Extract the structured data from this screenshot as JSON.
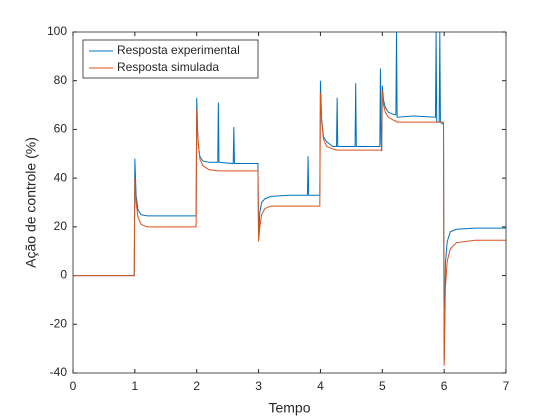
{
  "chart_data": {
    "type": "line",
    "xlabel": "Tempo",
    "ylabel": "Ação de controle (%)",
    "x": [
      0,
      0.99,
      1.0,
      1.02,
      1.05,
      1.1,
      1.2,
      1.5,
      1.8,
      1.99,
      2.0,
      2.02,
      2.05,
      2.1,
      2.2,
      2.34,
      2.35,
      2.36,
      2.59,
      2.6,
      2.61,
      2.99,
      3.0,
      3.02,
      3.05,
      3.1,
      3.2,
      3.5,
      3.79,
      3.8,
      3.81,
      3.99,
      4.0,
      4.02,
      4.05,
      4.1,
      4.2,
      4.26,
      4.27,
      4.28,
      4.56,
      4.57,
      4.58,
      4.96,
      4.97,
      4.98,
      4.99,
      5.0,
      5.02,
      5.05,
      5.1,
      5.2,
      5.22,
      5.23,
      5.24,
      5.5,
      5.86,
      5.87,
      5.88,
      5.92,
      5.93,
      5.94,
      5.99,
      6.0,
      6.02,
      6.05,
      6.1,
      6.2,
      6.5,
      7.0
    ],
    "series": [
      {
        "name": "Resposta experimental",
        "color": "#0072BD",
        "values": [
          0,
          0,
          48,
          33,
          27,
          25,
          24.5,
          24.5,
          24.5,
          24.5,
          73,
          55,
          49,
          47,
          46.5,
          46.5,
          71,
          46.5,
          46,
          61,
          46,
          46,
          16,
          26,
          30,
          31.5,
          32.5,
          33,
          33,
          49,
          33,
          33,
          80,
          64,
          57,
          55,
          53,
          53,
          73,
          53,
          53,
          79,
          53,
          53,
          85,
          55,
          51,
          78,
          72,
          69,
          67,
          66,
          66,
          100,
          65,
          65.5,
          65,
          100,
          63,
          63,
          100,
          63,
          62,
          -35,
          5,
          14,
          18,
          19,
          19.5,
          19.5
        ]
      },
      {
        "name": "Resposta simulada",
        "color": "#D95319",
        "values": [
          0,
          0,
          40,
          30,
          24,
          21,
          20,
          20,
          20,
          20,
          68,
          56,
          48,
          45,
          43.5,
          43,
          43,
          43,
          43,
          43,
          43,
          43,
          14,
          20,
          25,
          27.5,
          28.5,
          28.5,
          28.5,
          28.5,
          28.5,
          28.5,
          75,
          63,
          56,
          53,
          52,
          51.5,
          51.5,
          51.5,
          51.5,
          51.5,
          51.5,
          51.5,
          51.5,
          51.5,
          51.5,
          76,
          70,
          67,
          65,
          63.5,
          63.5,
          63,
          63,
          63,
          63,
          63,
          63,
          63,
          63,
          63,
          63,
          -37,
          -5,
          6,
          11,
          13.5,
          14.5,
          14.5
        ]
      }
    ],
    "xlim": [
      0,
      7
    ],
    "xticks": [
      0,
      1,
      2,
      3,
      4,
      5,
      6,
      7
    ],
    "ylim": [
      -40,
      100
    ],
    "yticks": [
      -40,
      -20,
      0,
      20,
      40,
      60,
      80,
      100
    ],
    "legend": "upper left"
  }
}
